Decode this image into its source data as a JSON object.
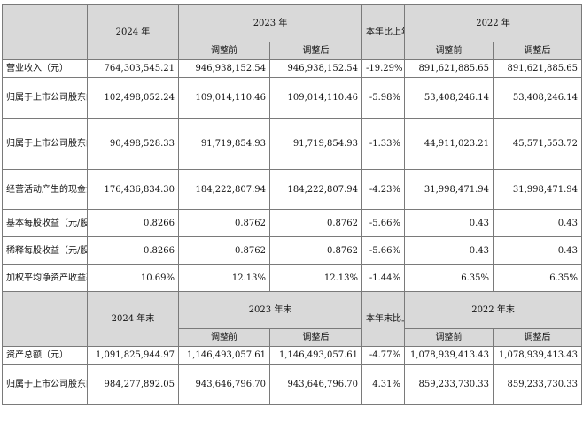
{
  "header_top": {
    "col_2024": "2024 年",
    "col_2023": "2023 年",
    "col_change": "本年比上年增减",
    "col_2022": "2022 年",
    "before_adj": "调整前",
    "after_adj": "调整后"
  },
  "rows_top": [
    {
      "label": "营业收入（元）",
      "v2024": "764,303,545.21",
      "v2023_before": "946,938,152.54",
      "v2023_after": "946,938,152.54",
      "change": "-19.29%",
      "v2022_before": "891,621,885.65",
      "v2022_after": "891,621,885.65"
    },
    {
      "label": "归属于上市公司股东的净利润（元）",
      "v2024": "102,498,052.24",
      "v2023_before": "109,014,110.46",
      "v2023_after": "109,014,110.46",
      "change": "-5.98%",
      "v2022_before": "53,408,246.14",
      "v2022_after": "53,408,246.14"
    },
    {
      "label": "归属于上市公司股东的扣除非经常性损益的净利润（元）",
      "v2024": "90,498,528.33",
      "v2023_before": "91,719,854.93",
      "v2023_after": "91,719,854.93",
      "change": "-1.33%",
      "v2022_before": "44,911,023.21",
      "v2022_after": "45,571,553.72"
    },
    {
      "label": "经营活动产生的现金流量净额（元）",
      "v2024": "176,436,834.30",
      "v2023_before": "184,222,807.94",
      "v2023_after": "184,222,807.94",
      "change": "-4.23%",
      "v2022_before": "31,998,471.94",
      "v2022_after": "31,998,471.94"
    },
    {
      "label": "基本每股收益（元/股）",
      "v2024": "0.8266",
      "v2023_before": "0.8762",
      "v2023_after": "0.8762",
      "change": "-5.66%",
      "v2022_before": "0.43",
      "v2022_after": "0.43"
    },
    {
      "label": "稀释每股收益（元/股）",
      "v2024": "0.8266",
      "v2023_before": "0.8762",
      "v2023_after": "0.8762",
      "change": "-5.66%",
      "v2022_before": "0.43",
      "v2022_after": "0.43"
    },
    {
      "label": "加权平均净资产收益率",
      "v2024": "10.69%",
      "v2023_before": "12.13%",
      "v2023_after": "12.13%",
      "change": "-1.44%",
      "v2022_before": "6.35%",
      "v2022_after": "6.35%"
    }
  ],
  "header_bottom": {
    "col_2024": "2024 年末",
    "col_2023": "2023 年末",
    "col_change": "本年末比上年末增减",
    "col_2022": "2022 年末",
    "before_adj": "调整前",
    "after_adj": "调整后"
  },
  "rows_bottom": [
    {
      "label": "资产总额（元）",
      "v2024": "1,091,825,944.97",
      "v2023_before": "1,146,493,057.61",
      "v2023_after": "1,146,493,057.61",
      "change": "-4.77%",
      "v2022_before": "1,078,939,413.43",
      "v2022_after": "1,078,939,413.43"
    },
    {
      "label": "归属于上市公司股东的净资产（元）",
      "v2024": "984,277,892.05",
      "v2023_before": "943,646,796.70",
      "v2023_after": "943,646,796.70",
      "change": "4.31%",
      "v2022_before": "859,233,730.33",
      "v2022_after": "859,233,730.33"
    }
  ]
}
